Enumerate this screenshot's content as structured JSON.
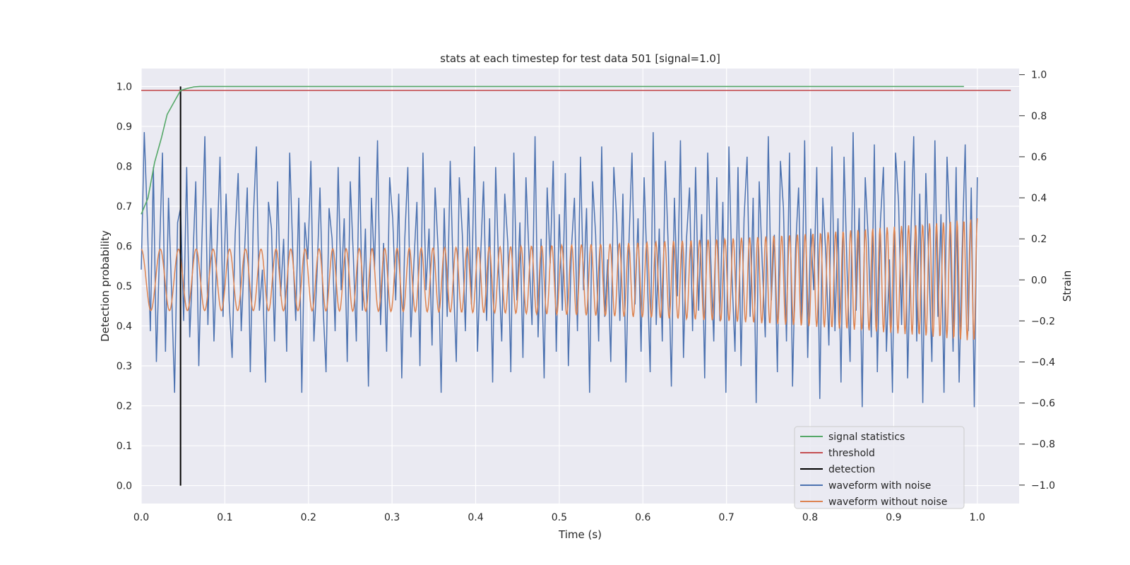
{
  "chart_data": {
    "type": "line",
    "title": "stats at each timestep for test data 501 [signal=1.0]",
    "xlabel": "Time (s)",
    "ylabel": "Detection probability",
    "ylabel_right": "Strain",
    "xlim": [
      0.0,
      1.05
    ],
    "ylim": [
      -0.045,
      1.045
    ],
    "ylim_right": [
      -1.09,
      1.03
    ],
    "xticks": [
      "0.0",
      "0.1",
      "0.2",
      "0.3",
      "0.4",
      "0.5",
      "0.6",
      "0.7",
      "0.8",
      "0.9",
      "1.0"
    ],
    "yticks": [
      "0.0",
      "0.1",
      "0.2",
      "0.3",
      "0.4",
      "0.5",
      "0.6",
      "0.7",
      "0.8",
      "0.9",
      "1.0"
    ],
    "yticks_right": [
      "−1.0",
      "−0.8",
      "−0.6",
      "−0.4",
      "−0.2",
      "0.0",
      "0.2",
      "0.4",
      "0.6",
      "0.8",
      "1.0"
    ],
    "grid": true,
    "legend_position": "lower-right",
    "colors": {
      "background": "#eaeaf2",
      "grid": "#ffffff",
      "signal_statistics": "#55a868",
      "threshold": "#c44e52",
      "detection": "#000000",
      "waveform_noise": "#4c72b0",
      "waveform_clean": "#dd8452"
    },
    "series": [
      {
        "name": "signal statistics",
        "axis": "left",
        "x": [
          0.0,
          0.008,
          0.016,
          0.024,
          0.031,
          0.039,
          0.047,
          0.055,
          0.063,
          0.07,
          0.078,
          0.1,
          0.2,
          0.3,
          0.4,
          0.5,
          0.6,
          0.7,
          0.8,
          0.9,
          0.984
        ],
        "y": [
          0.68,
          0.72,
          0.81,
          0.87,
          0.93,
          0.96,
          0.99,
          0.995,
          0.999,
          1.0,
          1.0,
          1.0,
          1.0,
          1.0,
          1.0,
          1.0,
          1.0,
          1.0,
          1.0,
          1.0,
          1.0
        ]
      },
      {
        "name": "threshold",
        "axis": "left",
        "x": [
          0.0,
          1.04
        ],
        "y": [
          0.99,
          0.99
        ]
      },
      {
        "name": "detection",
        "axis": "left",
        "x": [
          0.047,
          0.047
        ],
        "y": [
          0.0,
          1.0
        ]
      },
      {
        "name": "waveform with noise",
        "axis": "right",
        "x_start": 0.0,
        "x_end": 1.0,
        "y": [
          0.05,
          0.72,
          0.3,
          -0.25,
          0.55,
          -0.4,
          0.12,
          0.62,
          -0.35,
          0.4,
          -0.05,
          -0.55,
          0.28,
          0.35,
          -0.2,
          0.55,
          -0.28,
          0.08,
          0.48,
          -0.42,
          0.18,
          0.7,
          -0.22,
          0.35,
          -0.3,
          0.15,
          0.6,
          -0.18,
          0.42,
          -0.1,
          -0.38,
          0.22,
          0.52,
          -0.25,
          0.1,
          0.45,
          -0.45,
          0.3,
          0.65,
          -0.15,
          0.05,
          -0.5,
          0.38,
          0.25,
          -0.3,
          0.48,
          -0.08,
          0.2,
          -0.35,
          0.62,
          0.15,
          -0.2,
          0.4,
          -0.55,
          0.28,
          0.1,
          0.58,
          -0.3,
          0.02,
          0.45,
          -0.12,
          -0.45,
          0.35,
          0.2,
          -0.25,
          0.55,
          -0.05,
          0.3,
          -0.4,
          0.48,
          0.12,
          -0.3,
          0.6,
          -0.15,
          0.25,
          -0.52,
          0.4,
          0.05,
          0.68,
          -0.22,
          0.18,
          -0.35,
          0.5,
          0.3,
          -0.1,
          0.42,
          -0.48,
          0.2,
          0.55,
          -0.28,
          0.08,
          0.38,
          -0.42,
          0.62,
          -0.05,
          0.25,
          -0.32,
          0.45,
          0.15,
          -0.55,
          0.35,
          -0.18,
          0.58,
          0.02,
          -0.4,
          0.5,
          0.22,
          -0.25,
          0.4,
          -0.12,
          0.65,
          -0.35,
          0.1,
          0.48,
          -0.2,
          0.3,
          -0.5,
          0.55,
          0.05,
          -0.3,
          0.42,
          0.18,
          -0.45,
          0.62,
          -0.1,
          0.28,
          -0.38,
          0.5,
          0.12,
          -0.22,
          0.7,
          -0.28,
          0.2,
          -0.48,
          0.45,
          0.08,
          0.58,
          -0.35,
          0.32,
          -0.15,
          0.52,
          -0.42,
          0.15,
          0.4,
          -0.25,
          0.6,
          -0.05,
          0.35,
          -0.55,
          0.48,
          0.22,
          -0.3,
          0.65,
          -0.18,
          0.1,
          -0.4,
          0.55,
          0.28,
          -0.2,
          0.42,
          -0.5,
          0.18,
          0.62,
          -0.12,
          0.3,
          -0.35,
          0.5,
          0.05,
          -0.45,
          0.72,
          -0.22,
          0.25,
          -0.3,
          0.58,
          0.15,
          -0.52,
          0.4,
          -0.08,
          0.68,
          -0.38,
          0.2,
          0.45,
          -0.25,
          0.55,
          -0.15,
          0.32,
          -0.48,
          0.62,
          0.1,
          -0.3,
          0.5,
          -0.2,
          0.38,
          -0.55,
          0.65,
          0.02,
          -0.35,
          0.55,
          -0.42,
          0.3,
          0.6,
          -0.18,
          0.4,
          -0.6,
          0.48,
          0.08,
          -0.28,
          0.7,
          -0.1,
          0.22,
          -0.45,
          0.58,
          0.35,
          -0.3,
          0.62,
          -0.52,
          0.15,
          0.45,
          -0.2,
          0.68,
          -0.38,
          0.25,
          -0.05,
          0.55,
          -0.58,
          0.4,
          0.12,
          -0.32,
          0.65,
          -0.25,
          0.3,
          -0.5,
          0.6,
          0.05,
          -0.4,
          0.72,
          -0.15,
          0.35,
          -0.62,
          0.5,
          0.2,
          -0.28,
          0.66,
          -0.45,
          0.28,
          0.55,
          -0.35,
          0.1,
          -0.55,
          0.62,
          0.38,
          -0.22,
          0.58,
          -0.48,
          0.18,
          0.7,
          -0.3,
          0.42,
          -0.6,
          0.52,
          0.08,
          -0.4,
          0.68,
          -0.18,
          0.32,
          -0.55,
          0.6,
          0.25,
          -0.35,
          0.55,
          -0.5,
          0.15,
          0.66,
          -0.25,
          0.45,
          -0.62,
          0.5
        ]
      },
      {
        "name": "waveform without noise",
        "axis": "right",
        "x_start": 0.0,
        "x_end": 1.0,
        "amp_start": 0.15,
        "amp_end": 0.3,
        "cycles_start": 43,
        "cycles_end": 125
      }
    ]
  }
}
